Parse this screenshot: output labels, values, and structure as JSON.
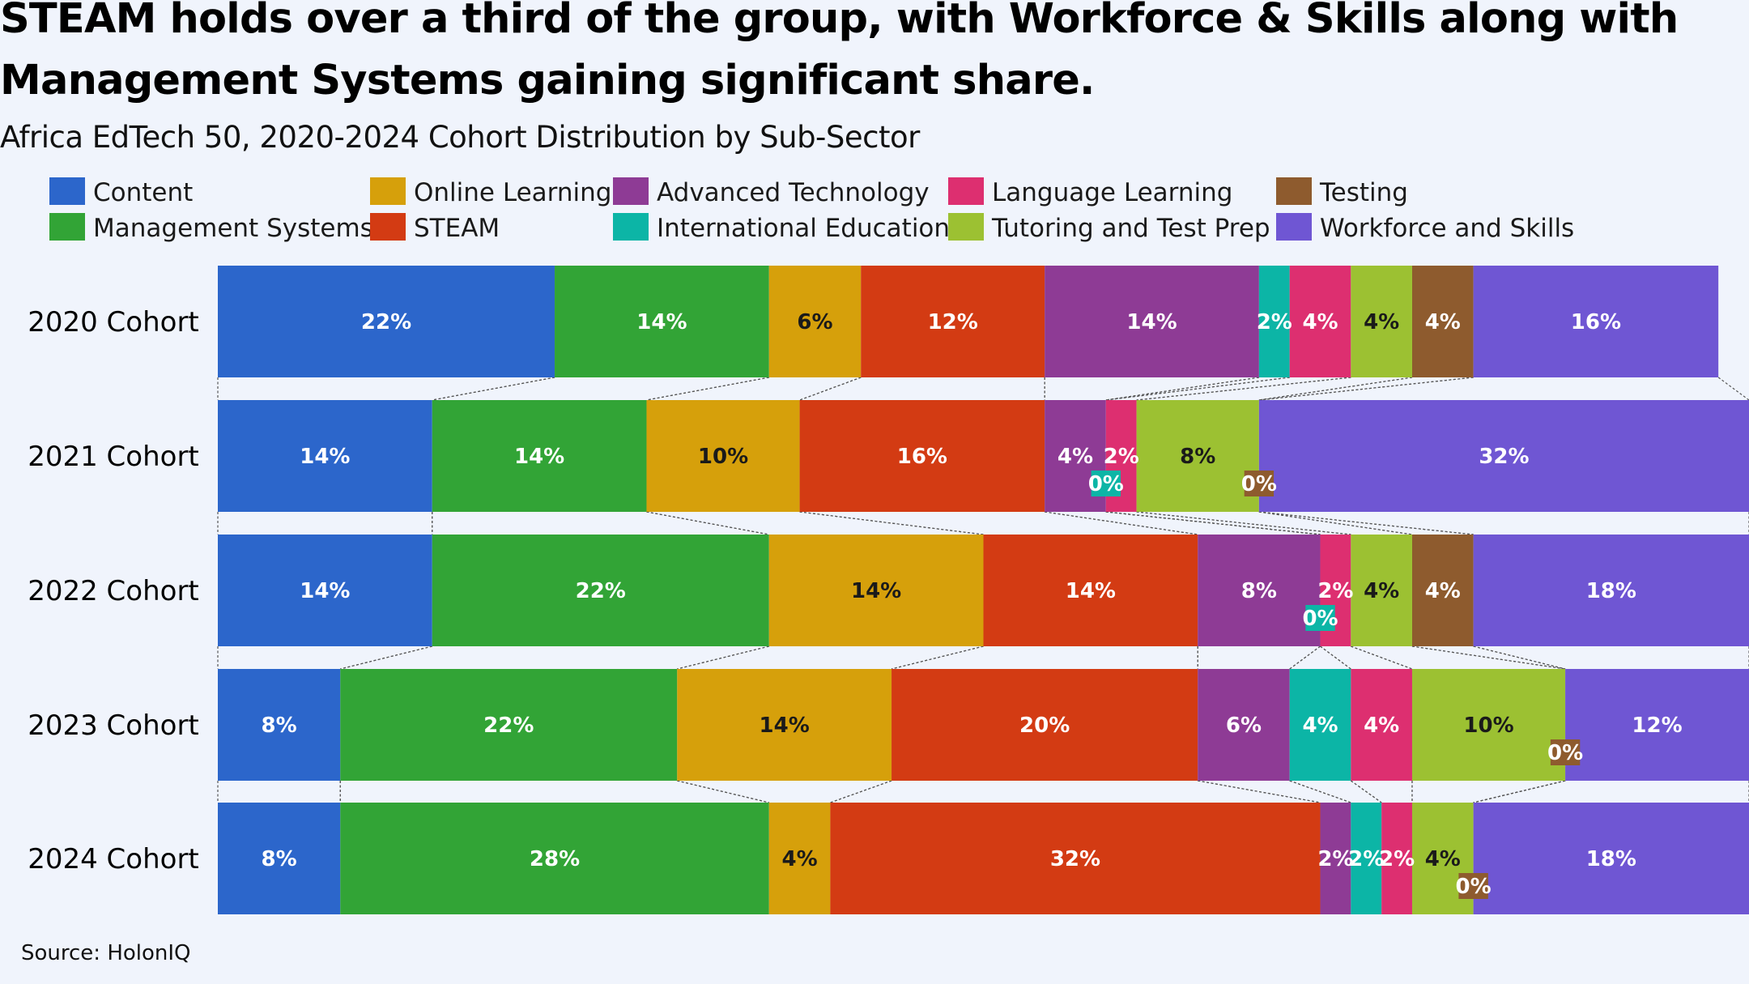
{
  "title": "STEAM holds over a third of the group, with Workforce & Skills along with Management Systems gaining significant share.",
  "subtitle": "Africa EdTech 50, 2020-2024 Cohort Distribution by Sub-Sector",
  "source": "Source: HolonIQ",
  "chart_data": {
    "type": "bar",
    "orientation": "horizontal",
    "stacked": "100%",
    "legend_position": "top",
    "grid": false,
    "categories": [
      "2020 Cohort",
      "2021 Cohort",
      "2022 Cohort",
      "2023 Cohort",
      "2024 Cohort"
    ],
    "series": [
      {
        "name": "Content",
        "color": "#2c66cb",
        "values": [
          22,
          14,
          14,
          8,
          8
        ],
        "labels": [
          "22%",
          "14%",
          "14%",
          "8%",
          "8%"
        ]
      },
      {
        "name": "Management Systems",
        "color": "#32a436",
        "values": [
          14,
          14,
          22,
          22,
          28
        ],
        "labels": [
          "14%",
          "14%",
          "22%",
          "22%",
          "28%"
        ]
      },
      {
        "name": "Online Learning",
        "color": "#d6a00b",
        "values": [
          6,
          10,
          14,
          14,
          4
        ],
        "labels": [
          "6%",
          "10%",
          "14%",
          "14%",
          "4%"
        ]
      },
      {
        "name": "STEAM",
        "color": "#d33b13",
        "values": [
          12,
          16,
          14,
          20,
          32
        ],
        "labels": [
          "12%",
          "16%",
          "14%",
          "20%",
          "32%"
        ]
      },
      {
        "name": "Advanced Technology",
        "color": "#8e3b95",
        "values": [
          14,
          4,
          8,
          6,
          2
        ],
        "labels": [
          "14%",
          "4%",
          "8%",
          "6%",
          "2%"
        ]
      },
      {
        "name": "International Education",
        "color": "#0cb5a6",
        "values": [
          2,
          0,
          0,
          4,
          2
        ],
        "labels": [
          "2%",
          "0%",
          "0%",
          "4%",
          "2%"
        ]
      },
      {
        "name": "Language Learning",
        "color": "#dd2f70",
        "values": [
          4,
          2,
          2,
          4,
          2
        ],
        "labels": [
          "4%",
          "2%",
          "2%",
          "4%",
          "2%"
        ]
      },
      {
        "name": "Tutoring and Test Prep",
        "color": "#9cc132",
        "values": [
          4,
          8,
          4,
          10,
          4
        ],
        "labels": [
          "4%",
          "8%",
          "4%",
          "10%",
          "4%"
        ]
      },
      {
        "name": "Testing",
        "color": "#8e5b2e",
        "values": [
          4,
          0,
          4,
          0,
          0
        ],
        "labels": [
          "4%",
          "0%",
          "4%",
          "0%",
          "0%"
        ]
      },
      {
        "name": "Workforce and Skills",
        "color": "#6f56d3",
        "values": [
          16,
          32,
          18,
          12,
          18
        ],
        "labels": [
          "16%",
          "32%",
          "18%",
          "12%",
          "18%"
        ]
      }
    ]
  }
}
